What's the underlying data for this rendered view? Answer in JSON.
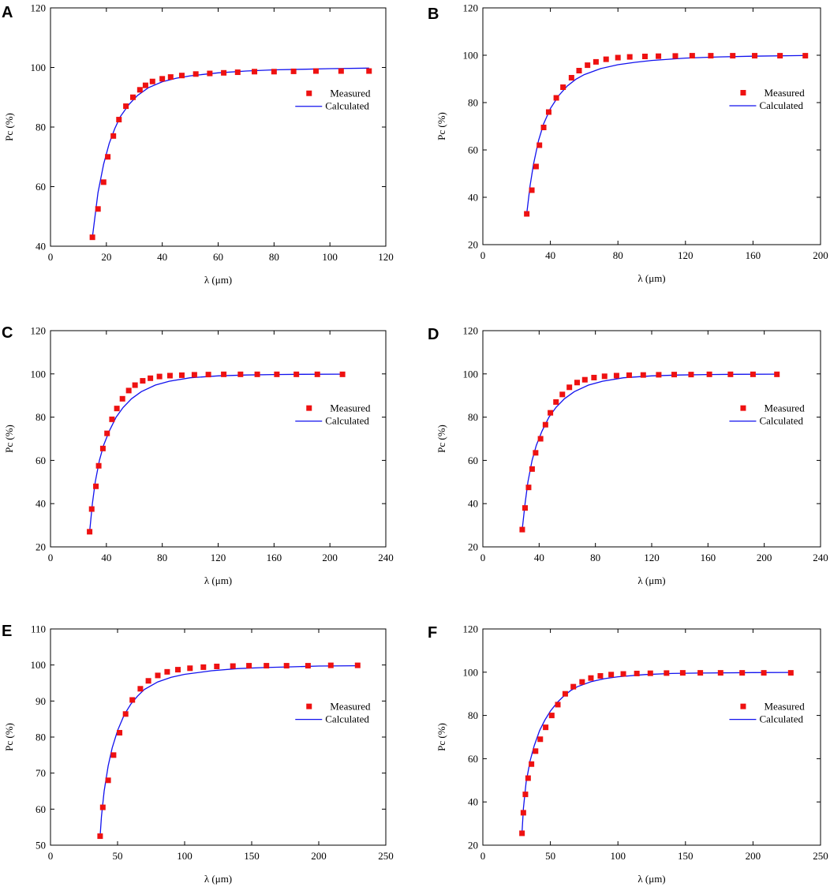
{
  "figure": {
    "colors": {
      "measured": "#ee1111",
      "calculated": "#1111ee",
      "axis": "#000000"
    }
  },
  "chart_data": [
    {
      "panel": "A",
      "type": "scatter+line",
      "xlabel": "λ (μm)",
      "ylabel": "Pc (%)",
      "xlim": [
        0,
        120
      ],
      "ylim": [
        40,
        120
      ],
      "xticks": [
        0,
        20,
        40,
        60,
        80,
        100,
        120
      ],
      "yticks": [
        40,
        60,
        80,
        100,
        120
      ],
      "legend": {
        "position": "right",
        "entries": [
          "Measured",
          "Calculated"
        ]
      },
      "series": [
        {
          "name": "Measured",
          "style": "marker",
          "x": [
            15,
            17,
            19,
            20.5,
            22.5,
            24.5,
            27,
            29.5,
            32,
            34,
            36.5,
            40,
            43,
            47,
            52,
            57,
            62,
            67,
            73,
            80,
            87,
            95,
            104,
            114
          ],
          "y": [
            43,
            52.5,
            61.5,
            70,
            77,
            82.5,
            87,
            90,
            92.5,
            94,
            95.3,
            96.2,
            96.8,
            97.3,
            97.8,
            98,
            98.2,
            98.4,
            98.6,
            98.6,
            98.7,
            98.8,
            98.8,
            98.8
          ]
        },
        {
          "name": "Calculated",
          "style": "line",
          "x": [
            15,
            17,
            19,
            21,
            23,
            25,
            28,
            31,
            35,
            40,
            45,
            50,
            60,
            70,
            80,
            90,
            100,
            114
          ],
          "y": [
            43,
            58,
            67.5,
            74.5,
            79.5,
            83.5,
            87.5,
            90.5,
            93.2,
            95.2,
            96.4,
            97.2,
            98.2,
            98.8,
            99.2,
            99.4,
            99.6,
            99.8
          ]
        }
      ]
    },
    {
      "panel": "B",
      "type": "scatter+line",
      "xlabel": "λ (μm)",
      "ylabel": "Pc (%)",
      "xlim": [
        0,
        200
      ],
      "ylim": [
        20,
        120
      ],
      "xticks": [
        0,
        40,
        80,
        120,
        160,
        200
      ],
      "yticks": [
        20,
        40,
        60,
        80,
        100,
        120
      ],
      "legend": {
        "position": "right",
        "entries": [
          "Measured",
          "Calculated"
        ]
      },
      "series": [
        {
          "name": "Measured",
          "style": "marker",
          "x": [
            26,
            29,
            31.5,
            33.5,
            36,
            39,
            43.5,
            47.5,
            52.5,
            57,
            62,
            67,
            73,
            80,
            87,
            96,
            104,
            114,
            124,
            135,
            148,
            161,
            176,
            191
          ],
          "y": [
            33,
            43,
            53,
            62,
            69.5,
            76,
            82,
            86.5,
            90.5,
            93.5,
            95.8,
            97.2,
            98.3,
            99,
            99.3,
            99.5,
            99.6,
            99.7,
            99.8,
            99.8,
            99.8,
            99.8,
            99.8,
            99.8
          ]
        },
        {
          "name": "Calculated",
          "style": "line",
          "x": [
            26,
            28,
            30,
            33,
            36,
            40,
            45,
            50,
            55,
            60,
            70,
            80,
            90,
            100,
            120,
            140,
            160,
            191
          ],
          "y": [
            33,
            45,
            54,
            64,
            71,
            77.5,
            83,
            87,
            89.8,
            91.8,
            94.4,
            96,
            97,
            97.8,
            98.8,
            99.3,
            99.6,
            99.9
          ]
        }
      ]
    },
    {
      "panel": "C",
      "type": "scatter+line",
      "xlabel": "λ (μm)",
      "ylabel": "Pc (%)",
      "xlim": [
        0,
        240
      ],
      "ylim": [
        20,
        120
      ],
      "xticks": [
        0,
        40,
        80,
        120,
        160,
        200,
        240
      ],
      "yticks": [
        20,
        40,
        60,
        80,
        100,
        120
      ],
      "legend": {
        "position": "right",
        "entries": [
          "Measured",
          "Calculated"
        ]
      },
      "series": [
        {
          "name": "Measured",
          "style": "marker",
          "x": [
            28,
            29.5,
            32.5,
            34.5,
            37.5,
            40.5,
            44,
            47.5,
            51.5,
            56,
            60.5,
            66,
            71.5,
            78,
            85.5,
            94,
            103,
            113,
            124,
            136,
            148,
            162,
            176,
            191,
            209
          ],
          "y": [
            27,
            37.5,
            48,
            57.5,
            65.5,
            72.5,
            79,
            84,
            88.5,
            92.3,
            94.8,
            96.8,
            98,
            98.8,
            99.2,
            99.4,
            99.6,
            99.7,
            99.8,
            99.8,
            99.8,
            99.8,
            99.8,
            99.8,
            99.8
          ]
        },
        {
          "name": "Calculated",
          "style": "line",
          "x": [
            28,
            30,
            32,
            35,
            38,
            42,
            47,
            52,
            58,
            65,
            75,
            85,
            100,
            120,
            140,
            160,
            180,
            209
          ],
          "y": [
            27,
            40,
            50,
            60,
            67,
            73.5,
            80,
            84.5,
            88.5,
            91.8,
            94.8,
            96.6,
            98.2,
            99.1,
            99.5,
            99.7,
            99.8,
            99.9
          ]
        }
      ]
    },
    {
      "panel": "D",
      "type": "scatter+line",
      "xlabel": "λ (μm)",
      "ylabel": "Pc (%)",
      "xlim": [
        0,
        240
      ],
      "ylim": [
        20,
        120
      ],
      "xticks": [
        0,
        40,
        80,
        120,
        160,
        200,
        240
      ],
      "yticks": [
        20,
        40,
        60,
        80,
        100,
        120
      ],
      "legend": {
        "position": "right",
        "entries": [
          "Measured",
          "Calculated"
        ]
      },
      "series": [
        {
          "name": "Measured",
          "style": "marker",
          "x": [
            28,
            30,
            32.5,
            35,
            37.5,
            41,
            44.5,
            48,
            52,
            56.5,
            61.5,
            67,
            72.5,
            79,
            86.5,
            95,
            104,
            114,
            125,
            136,
            148,
            161,
            176,
            192,
            209
          ],
          "y": [
            28,
            38,
            47.5,
            56,
            63.5,
            70,
            76.5,
            82,
            87,
            90.5,
            93.8,
            96,
            97.3,
            98.3,
            98.9,
            99.2,
            99.4,
            99.5,
            99.6,
            99.7,
            99.7,
            99.8,
            99.8,
            99.8,
            99.8
          ]
        },
        {
          "name": "Calculated",
          "style": "line",
          "x": [
            28,
            30,
            32,
            35,
            38,
            42,
            47,
            52,
            58,
            65,
            75,
            85,
            100,
            120,
            140,
            160,
            180,
            209
          ],
          "y": [
            28,
            40,
            50,
            60,
            67,
            73.5,
            80,
            84.5,
            88.5,
            91.8,
            94.8,
            96.6,
            98.2,
            99.1,
            99.5,
            99.7,
            99.8,
            99.9
          ]
        }
      ]
    },
    {
      "panel": "E",
      "type": "scatter+line",
      "xlabel": "λ (μm)",
      "ylabel": "Pc (%)",
      "xlim": [
        0,
        250
      ],
      "ylim": [
        50,
        110
      ],
      "xticks": [
        0,
        50,
        100,
        150,
        200,
        250
      ],
      "yticks": [
        50,
        60,
        70,
        80,
        90,
        100,
        110
      ],
      "legend": {
        "position": "right",
        "entries": [
          "Measured",
          "Calculated"
        ]
      },
      "series": [
        {
          "name": "Measured",
          "style": "marker",
          "x": [
            37,
            39,
            43,
            47,
            51.5,
            56,
            61,
            67,
            73,
            80,
            87,
            95,
            104,
            114,
            124,
            136,
            148,
            161,
            176,
            192,
            209,
            229
          ],
          "y": [
            52.5,
            60.5,
            68,
            75,
            81.2,
            86.4,
            90.3,
            93.4,
            95.6,
            97.1,
            98.1,
            98.7,
            99.1,
            99.4,
            99.6,
            99.7,
            99.8,
            99.8,
            99.8,
            99.8,
            99.9,
            99.9
          ]
        },
        {
          "name": "Calculated",
          "style": "line",
          "x": [
            37,
            38,
            40,
            43,
            46,
            50,
            55,
            60,
            65,
            70,
            80,
            90,
            100,
            120,
            140,
            160,
            180,
            200,
            229
          ],
          "y": [
            52.5,
            58,
            65,
            72,
            77,
            81.8,
            86.2,
            89.2,
            91.4,
            93.2,
            95.3,
            96.6,
            97.4,
            98.4,
            99,
            99.3,
            99.5,
            99.7,
            99.8
          ]
        }
      ]
    },
    {
      "panel": "F",
      "type": "scatter+line",
      "xlabel": "λ (μm)",
      "ylabel": "Pc (%)",
      "xlim": [
        0,
        250
      ],
      "ylim": [
        20,
        120
      ],
      "xticks": [
        0,
        50,
        100,
        150,
        200,
        250
      ],
      "yticks": [
        20,
        40,
        60,
        80,
        100,
        120
      ],
      "legend": {
        "position": "right",
        "entries": [
          "Measured",
          "Calculated"
        ]
      },
      "series": [
        {
          "name": "Measured",
          "style": "marker",
          "x": [
            29,
            30,
            31.5,
            33.5,
            36,
            39,
            42.5,
            46.5,
            51,
            55.5,
            61,
            67,
            73.5,
            80,
            87,
            95,
            104,
            114,
            124,
            136,
            148,
            161,
            176,
            192,
            208,
            228
          ],
          "y": [
            25.5,
            35,
            43.5,
            51,
            57.5,
            63.5,
            69,
            74.5,
            80,
            85,
            90,
            93.3,
            95.5,
            97.3,
            98.3,
            98.9,
            99.2,
            99.4,
            99.5,
            99.6,
            99.7,
            99.7,
            99.7,
            99.7,
            99.7,
            99.7
          ]
        },
        {
          "name": "Calculated",
          "style": "line",
          "x": [
            29,
            30,
            32,
            35,
            38,
            42,
            46,
            50,
            55,
            60,
            65,
            70,
            80,
            90,
            100,
            120,
            140,
            160,
            200,
            228
          ],
          "y": [
            25.5,
            37,
            49,
            59,
            66,
            73,
            78,
            82,
            86,
            89,
            91.5,
            93.3,
            95.6,
            97,
            97.9,
            98.9,
            99.4,
            99.6,
            99.8,
            99.9
          ]
        }
      ]
    }
  ]
}
